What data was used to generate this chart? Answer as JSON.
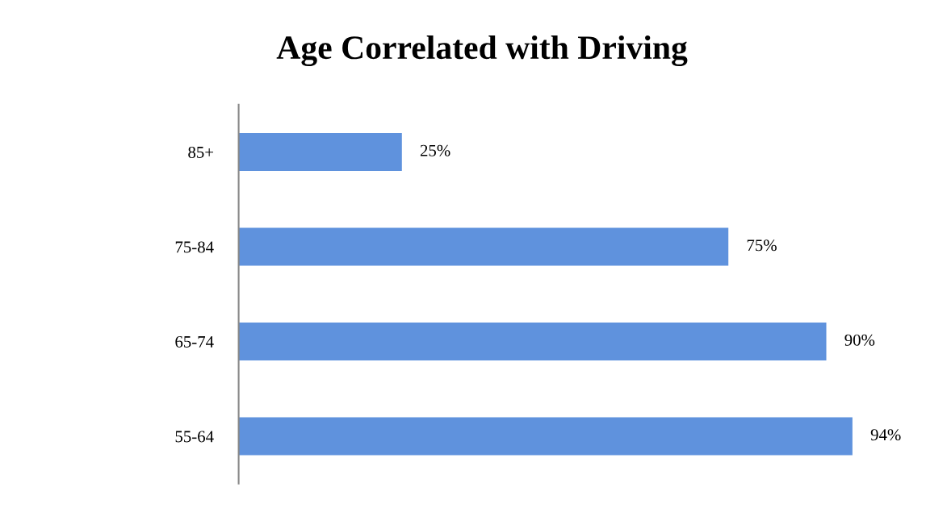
{
  "chart_data": {
    "type": "bar",
    "orientation": "horizontal",
    "title": "Age Correlated with Driving",
    "categories": [
      "85+",
      "75-84",
      "65-74",
      "55-64"
    ],
    "values": [
      25,
      75,
      90,
      94
    ],
    "value_labels": [
      "25%",
      "75%",
      "90%",
      "94%"
    ],
    "color": "#5f92dd"
  }
}
